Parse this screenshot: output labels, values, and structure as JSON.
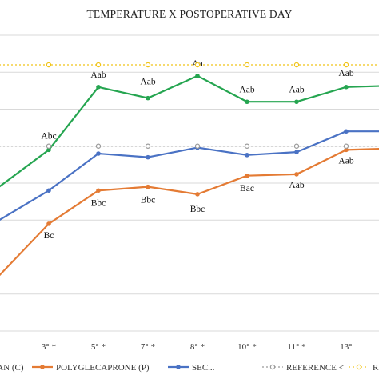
{
  "chart_data": {
    "type": "line",
    "title": "TEMPERATURE X POSTOPERATIVE DAY",
    "categories": [
      "",
      "3° *",
      "5° *",
      "7° *",
      "8° *",
      "10° *",
      "11° *",
      "13°",
      ""
    ],
    "series": [
      {
        "name": "",
        "legend_label": "...AN (C)",
        "color": "#25a550",
        "marker": "dot",
        "values": [
          35.95,
          36.45,
          37.3,
          37.15,
          37.45,
          37.1,
          37.1,
          37.3,
          37.32
        ],
        "labels": [
          "",
          "Abc",
          "Aab",
          "Aab",
          "Aa",
          "Aab",
          "Aab",
          "Aab",
          ""
        ]
      },
      {
        "name": "POLYGLECAPRONE (P)",
        "legend_label": "POLYGLECAPRONE (P)",
        "color": "#e47b34",
        "marker": "dot",
        "values": [
          34.75,
          35.45,
          35.9,
          35.95,
          35.85,
          36.1,
          36.12,
          36.45,
          36.47
        ],
        "labels": [
          "",
          "Bc",
          "Bbc",
          "Bbc",
          "Bbc",
          "Bac",
          "Aab",
          "Aab",
          ""
        ]
      },
      {
        "name": "",
        "legend_label": "SEC...",
        "color": "#4a72c4",
        "marker": "dot",
        "values": [
          35.5,
          35.9,
          36.4,
          36.35,
          36.48,
          36.38,
          36.42,
          36.7,
          36.7
        ],
        "labels": [
          "",
          "",
          "",
          "",
          "",
          "",
          "",
          "",
          ""
        ]
      },
      {
        "name": "REFERENCE <",
        "legend_label": "REFERENCE <",
        "color": "#9a9a9a",
        "marker": "hollow-circle",
        "style": "dotted",
        "values": [
          36.5,
          36.5,
          36.5,
          36.5,
          36.5,
          36.5,
          36.5,
          36.5,
          36.5
        ],
        "labels": []
      },
      {
        "name": "REFERENCE >",
        "legend_label": "REFERENCE >",
        "color": "#f0c419",
        "marker": "hollow-circle",
        "style": "dotted",
        "values": [
          37.6,
          37.6,
          37.6,
          37.6,
          37.6,
          37.6,
          37.6,
          37.6,
          37.6
        ],
        "labels": []
      }
    ],
    "xlabel": "",
    "ylabel": "",
    "ylim": [
      34,
      38
    ],
    "grid": true,
    "legend_position": "bottom"
  }
}
